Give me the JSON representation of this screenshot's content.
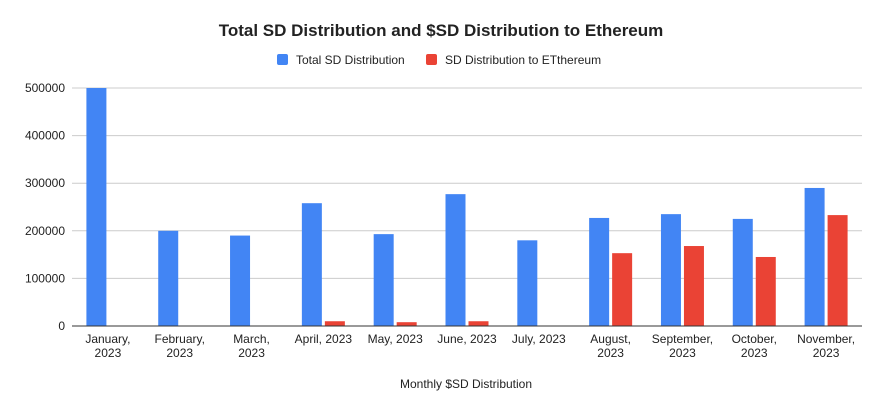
{
  "chart_data": {
    "type": "bar",
    "title": "Total SD Distribution and $SD Distribution to Ethereum",
    "xlabel": "Monthly $SD Distribution",
    "ylabel": "",
    "ylim": [
      0,
      500000
    ],
    "yticks": [
      0,
      100000,
      200000,
      300000,
      400000,
      500000
    ],
    "ytick_labels": [
      "0",
      "100000",
      "200000",
      "300000",
      "400000",
      "500000"
    ],
    "grid": true,
    "legend_position": "top-center",
    "categories": [
      [
        "January,",
        "2023"
      ],
      [
        "February,",
        "2023"
      ],
      [
        "March,",
        "2023"
      ],
      [
        "April, 2023"
      ],
      [
        "May, 2023"
      ],
      [
        "June, 2023"
      ],
      [
        "July, 2023"
      ],
      [
        "August,",
        "2023"
      ],
      [
        "September,",
        "2023"
      ],
      [
        "October,",
        "2023"
      ],
      [
        "November,",
        "2023"
      ]
    ],
    "series": [
      {
        "name": "Total SD Distribution",
        "color": "#4285f4",
        "values": [
          500000,
          200000,
          190000,
          258000,
          193000,
          277000,
          180000,
          227000,
          235000,
          225000,
          290000
        ]
      },
      {
        "name": "SD Distribution to ETthereum",
        "color": "#ea4335",
        "values": [
          0,
          0,
          0,
          10000,
          8000,
          10000,
          0,
          153000,
          168000,
          145000,
          233000
        ]
      }
    ]
  }
}
